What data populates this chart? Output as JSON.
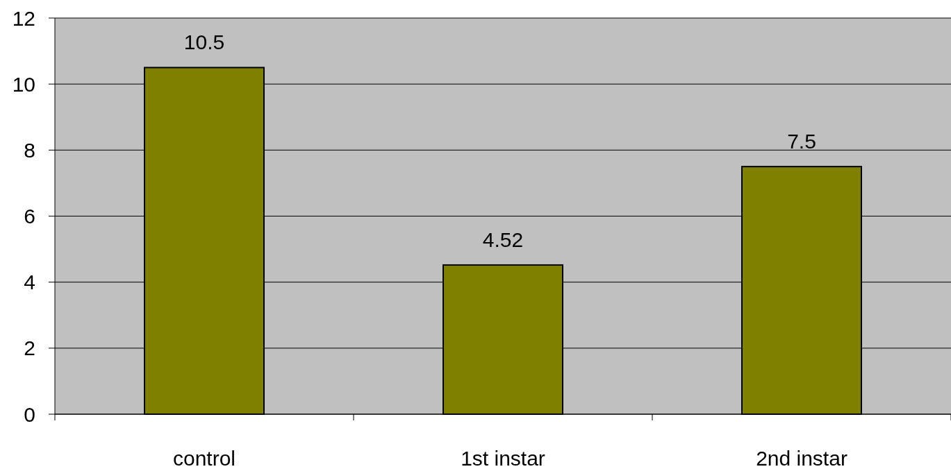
{
  "chart_data": {
    "type": "bar",
    "categories": [
      "control",
      "1st instar",
      "2nd instar"
    ],
    "values": [
      10.5,
      4.52,
      7.5
    ],
    "color": "#808000",
    "ylim": [
      0,
      12
    ],
    "yticks": [
      0,
      2,
      4,
      6,
      8,
      10,
      12
    ],
    "grid": "y",
    "data_labels": true
  }
}
